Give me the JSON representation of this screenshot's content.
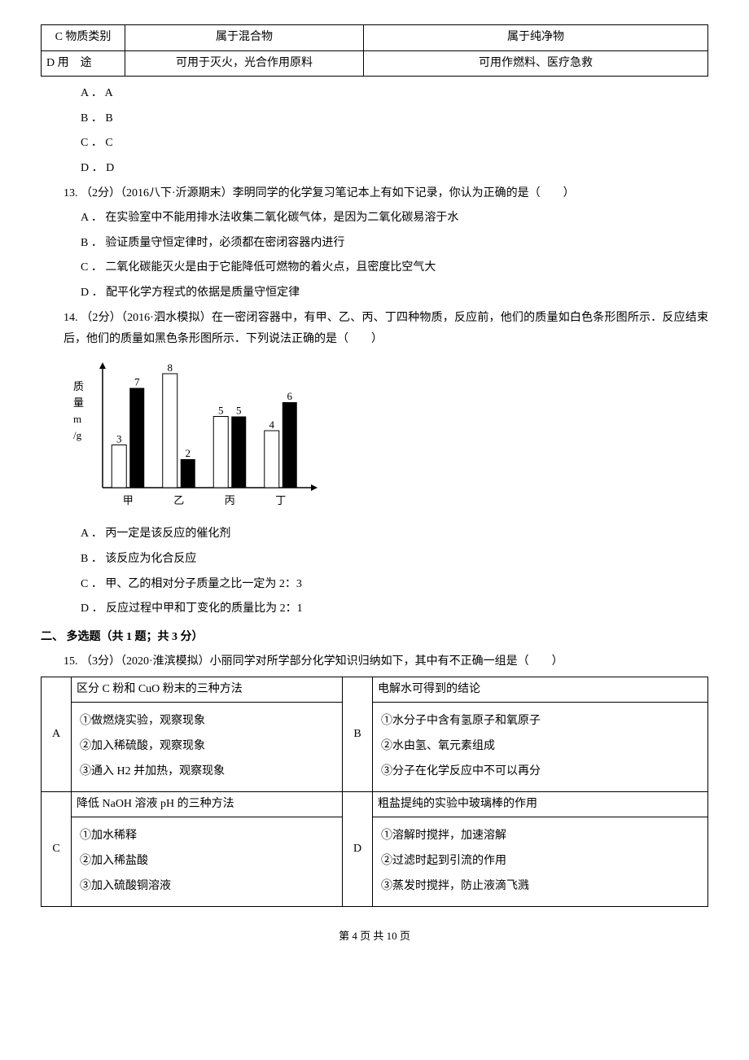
{
  "topTable": {
    "rows": [
      {
        "label": "C 物质类别",
        "col2": "属于混合物",
        "col3": "属于纯净物"
      },
      {
        "label": "D 用　途",
        "col2": "可用于灭火，光合作用原料",
        "col3": "可用作燃料、医疗急救"
      }
    ]
  },
  "options12": {
    "a": "A ． A",
    "b": "B ． B",
    "c": "C ． C",
    "d": "D ． D"
  },
  "q13": {
    "stem": "13. （2分）（2016八下·沂源期末）李明同学的化学复习笔记本上有如下记录，你认为正确的是（　　）",
    "a": "A ． 在实验室中不能用排水法收集二氧化碳气体，是因为二氧化碳易溶于水",
    "b": "B ．  验证质量守恒定律时，必须都在密闭容器内进行",
    "c": "C ．  二氧化碳能灭火是由于它能降低可燃物的着火点，且密度比空气大",
    "d": "D ．  配平化学方程式的依据是质量守恒定律"
  },
  "q14": {
    "stem": "14. （2分）（2016·泗水模拟）在一密闭容器中，有甲、乙、丙、丁四种物质，反应前，他们的质量如白色条形图所示．反应结束后，他们的质量如黑色条形图所示．下列说法正确的是（　　）",
    "a": "A ． 丙一定是该反应的催化剂",
    "b": "B ．  该反应为化合反应",
    "c": "C ．  甲、乙的相对分子质量之比一定为 2：3",
    "d": "D ．  反应过程中甲和丁变化的质量比为 2：1",
    "chart": {
      "type": "bar",
      "ylabel_lines": [
        "质",
        "量",
        "m",
        "/g"
      ],
      "categories": [
        "甲",
        "乙",
        "丙",
        "丁"
      ],
      "white_values": [
        3,
        8,
        5,
        4
      ],
      "black_values": [
        7,
        2,
        5,
        6
      ],
      "bar_labels_white": [
        "3",
        "8",
        "5",
        "4"
      ],
      "bar_labels_black": [
        "7",
        "",
        "5",
        "6"
      ],
      "label_for_black_yi": "2",
      "ymax": 8,
      "bar_white_fill": "#ffffff",
      "bar_black_fill": "#000000",
      "axis_color": "#000000",
      "font_size": 13
    }
  },
  "section2": "二、 多选题（共 1 题；共 3 分）",
  "q15": {
    "stem": "15. （3分）（2020·淮滨模拟）小丽同学对所学部分化学知识归纳如下，其中有不正确一组是（　　）",
    "cells": {
      "A": {
        "title": "区分 C 粉和 CuO 粉末的三种方法",
        "l1": "①做燃烧实验，观察现象",
        "l2": "②加入稀硫酸，观察现象",
        "l3": "③通入 H2 并加热，观察现象"
      },
      "B": {
        "title": "电解水可得到的结论",
        "l1": "①水分子中含有氢原子和氧原子",
        "l2": "②水由氢、氧元素组成",
        "l3": "③分子在化学反应中不可以再分"
      },
      "C": {
        "title": "降低 NaOH 溶液 pH 的三种方法",
        "l1": "①加水稀释",
        "l2": "②加入稀盐酸",
        "l3": "③加入硫酸铜溶液"
      },
      "D": {
        "title": "粗盐提纯的实验中玻璃棒的作用",
        "l1": "①溶解时搅拌，加速溶解",
        "l2": "②过滤时起到引流的作用",
        "l3": "③蒸发时搅拌，防止液滴飞溅"
      }
    }
  },
  "pager": "第 4 页 共 10 页"
}
